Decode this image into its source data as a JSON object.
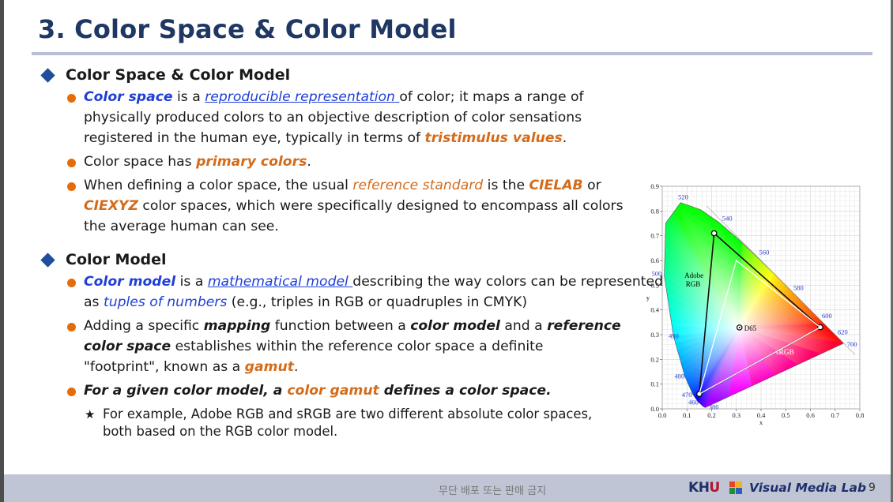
{
  "slide": {
    "title": "3. Color Space & Color Model",
    "sections": [
      {
        "heading": "Color Space & Color Model",
        "bullets": [
          {
            "kw": "Color space",
            "t1": " is a ",
            "link": "reproducible representation ",
            "t2": "of color; it maps a range of physically produced colors to an objective description of color sensations registered in the human eye, typically in terms of ",
            "kw2": "tristimulus values",
            "t3": "."
          },
          {
            "t1": "Color space has ",
            "kw": "primary colors",
            "t2": "."
          },
          {
            "t1": "When defining a color space, the usual ",
            "it": "reference standard",
            "t2": " is the ",
            "kw1": "CIELAB",
            "t3": " or ",
            "kw2": "CIEXYZ",
            "t4": " color spaces, which were specifically designed to encompass all colors the average human can see."
          }
        ]
      },
      {
        "heading": "Color Model",
        "bullets": [
          {
            "kw": "Color model",
            "t1": " is a ",
            "link": "mathematical model ",
            "t2": "describing the way colors can be represented as ",
            "it": "tuples of numbers",
            "t3": " (e.g., triples in RGB or quadruples in CMYK)"
          },
          {
            "t1": "Adding a specific ",
            "b1": "mapping",
            "t2": " function between a ",
            "b2": "color model",
            "t3": " and a ",
            "b3": "reference color space",
            "t4": " establishes within the reference color space a definite \"footprint\", known as a ",
            "kw": "gamut",
            "t5": "."
          },
          {
            "b1": "For a given color model, a ",
            "kw": "color gamut",
            "b2": " defines a color space."
          }
        ],
        "sub": "For example, Adobe RGB and sRGB are two different absolute color spaces, both based on the RGB color model."
      }
    ]
  },
  "chart_data": {
    "type": "scatter",
    "xlabel": "x",
    "ylabel": "y",
    "xlim": [
      0.0,
      0.8
    ],
    "ylim": [
      0.0,
      0.9
    ],
    "x_ticks": [
      "0.0",
      "0.1",
      "0.2",
      "0.3",
      "0.4",
      "0.5",
      "0.6",
      "0.7",
      "0.8"
    ],
    "y_ticks": [
      "0.0",
      "0.1",
      "0.2",
      "0.3",
      "0.4",
      "0.5",
      "0.6",
      "0.7",
      "0.8",
      "0.9"
    ],
    "locus_points": [
      [
        0.1741,
        0.005
      ],
      [
        0.1666,
        0.0089
      ],
      [
        0.144,
        0.0297
      ],
      [
        0.1241,
        0.0578
      ],
      [
        0.0913,
        0.1327
      ],
      [
        0.0454,
        0.295
      ],
      [
        0.0082,
        0.5384
      ],
      [
        0.0139,
        0.7502
      ],
      [
        0.0743,
        0.8338
      ],
      [
        0.1547,
        0.8059
      ],
      [
        0.2296,
        0.7543
      ],
      [
        0.3016,
        0.6923
      ],
      [
        0.3731,
        0.6245
      ],
      [
        0.4441,
        0.5547
      ],
      [
        0.5125,
        0.4866
      ],
      [
        0.5752,
        0.4242
      ],
      [
        0.627,
        0.3725
      ],
      [
        0.6658,
        0.334
      ],
      [
        0.6915,
        0.3083
      ],
      [
        0.7079,
        0.292
      ],
      [
        0.7347,
        0.2653
      ]
    ],
    "wavelength_labels": [
      {
        "label": "380",
        "x": 0.175,
        "y": 0.004
      },
      {
        "label": "460",
        "x": 0.144,
        "y": 0.03
      },
      {
        "label": "470",
        "x": 0.124,
        "y": 0.058
      },
      {
        "label": "480",
        "x": 0.091,
        "y": 0.133
      },
      {
        "label": "490",
        "x": 0.045,
        "y": 0.295
      },
      {
        "label": "500",
        "x": 0.008,
        "y": 0.538
      },
      {
        "label": "520",
        "x": 0.074,
        "y": 0.834
      },
      {
        "label": "540",
        "x": 0.23,
        "y": 0.754
      },
      {
        "label": "560",
        "x": 0.373,
        "y": 0.624
      },
      {
        "label": "580",
        "x": 0.512,
        "y": 0.487
      },
      {
        "label": "600",
        "x": 0.627,
        "y": 0.373
      },
      {
        "label": "620",
        "x": 0.691,
        "y": 0.308
      },
      {
        "label": "700",
        "x": 0.735,
        "y": 0.265
      }
    ],
    "gamuts": [
      {
        "name": "Adobe RGB",
        "points": [
          [
            0.64,
            0.33
          ],
          [
            0.21,
            0.71
          ],
          [
            0.15,
            0.06
          ]
        ]
      },
      {
        "name": "sRGB",
        "points": [
          [
            0.64,
            0.33
          ],
          [
            0.3,
            0.6
          ],
          [
            0.15,
            0.06
          ]
        ]
      }
    ],
    "white_point": {
      "name": "D65",
      "x": 0.3127,
      "y": 0.329
    },
    "grid": true
  },
  "footer": {
    "note": "무단 배포 또는 판매 금지",
    "khu_k": "K",
    "khu_h": "H",
    "khu_u": "U",
    "lab": "Visual Media Lab",
    "page": "9"
  }
}
